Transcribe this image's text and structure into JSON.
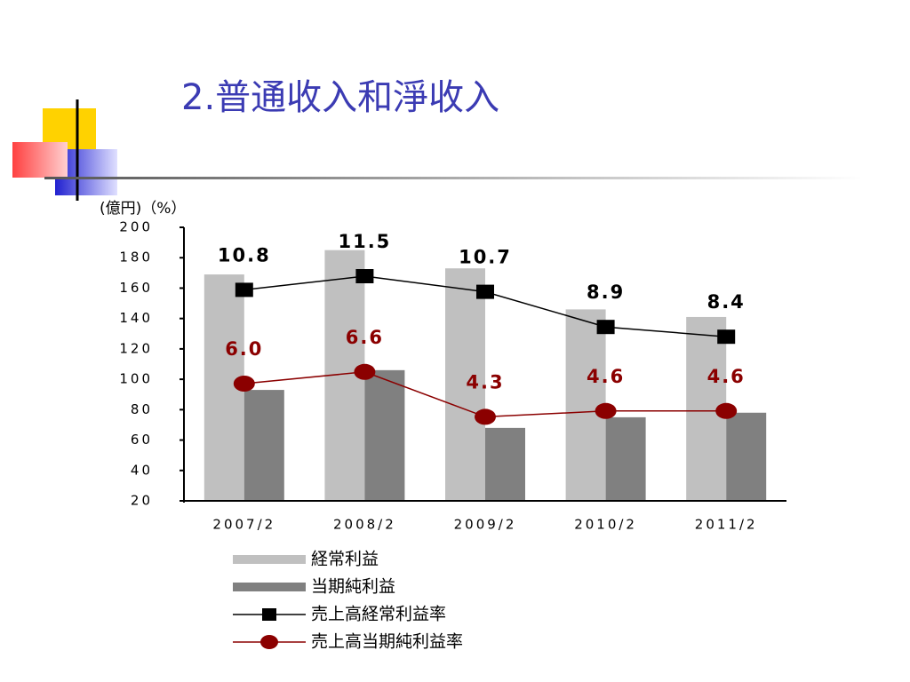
{
  "chart_data": {
    "type": "bar",
    "title": "2.普通收入和淨收入",
    "y_axis_label": "(億円)（%）",
    "categories": [
      "2007/2",
      "2008/2",
      "2009/2",
      "2010/2",
      "2011/2"
    ],
    "ylim": [
      20,
      200
    ],
    "yticks": [
      20,
      40,
      60,
      80,
      100,
      120,
      140,
      160,
      180,
      200
    ],
    "y2lim": [
      0,
      14
    ],
    "series": [
      {
        "name": "経常利益",
        "type": "bar",
        "color": "#c0c0c0",
        "values": [
          169,
          185,
          173,
          146,
          141
        ]
      },
      {
        "name": "当期純利益",
        "type": "bar",
        "color": "#808080",
        "values": [
          93,
          106,
          68,
          75,
          78
        ]
      },
      {
        "name": "売上高経常利益率",
        "type": "line",
        "axis": "y2",
        "marker": "square",
        "color": "#000000",
        "label_color": "#000000",
        "values": [
          10.8,
          11.5,
          10.7,
          8.9,
          8.4
        ]
      },
      {
        "name": "売上高当期純利益率",
        "type": "line",
        "axis": "y2",
        "marker": "circle",
        "color": "#8b0000",
        "label_color": "#8b0000",
        "values": [
          6.0,
          6.6,
          4.3,
          4.6,
          4.6
        ],
        "value_labels": [
          "6.0",
          "6.6",
          "4.3",
          "4.6",
          "4.6"
        ]
      }
    ]
  }
}
